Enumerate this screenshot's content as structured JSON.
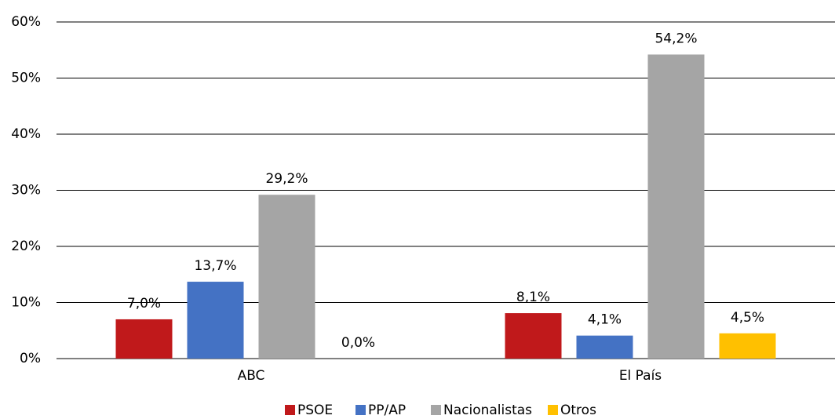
{
  "chart_data": {
    "type": "bar",
    "categories": [
      "ABC",
      "El País"
    ],
    "series": [
      {
        "name": "PSOE",
        "color": "#c0191b",
        "values": [
          7.0,
          8.1
        ],
        "value_labels": [
          "7,0%",
          "8,1%"
        ]
      },
      {
        "name": "PP/AP",
        "color": "#4472c4",
        "values": [
          13.7,
          4.1
        ],
        "value_labels": [
          "13,7%",
          "4,1%"
        ]
      },
      {
        "name": "Nacionalistas",
        "color": "#a5a5a5",
        "values": [
          29.2,
          54.2
        ],
        "value_labels": [
          "29,2%",
          "54,2%"
        ]
      },
      {
        "name": "Otros",
        "color": "#ffc000",
        "values": [
          0.0,
          4.5
        ],
        "value_labels": [
          "0,0%",
          "4,5%"
        ]
      }
    ],
    "ylim": [
      0,
      60
    ],
    "yticks": [
      {
        "value": 0,
        "label": "0%"
      },
      {
        "value": 10,
        "label": "10%"
      },
      {
        "value": 20,
        "label": "20%"
      },
      {
        "value": 30,
        "label": "30%"
      },
      {
        "value": 40,
        "label": "40%"
      },
      {
        "value": 50,
        "label": "50%"
      },
      {
        "value": 60,
        "label": "60%"
      }
    ],
    "grid": true,
    "legend": "bottom"
  }
}
